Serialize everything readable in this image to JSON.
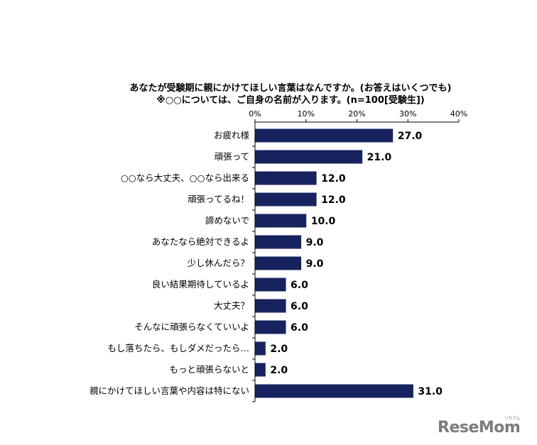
{
  "chart_data": {
    "type": "bar",
    "orientation": "horizontal",
    "title": [
      "あなたが受験期に親にかけてほしい言葉はなんですか。(お答えはいくつでも)",
      "※○○については、ご自身の名前が入ります。(n=100[受験生])"
    ],
    "categories": [
      "お疲れ様",
      "頑張って",
      "○○なら大丈夫、○○なら出来る",
      "頑張ってるね！",
      "諦めないで",
      "あなたなら絶対できるよ",
      "少し休んだら？",
      "良い結果期待しているよ",
      "大丈夫？",
      "そんなに頑張らなくていいよ",
      "もし落ちたら、もしダメだったら…",
      "もっと頑張らないと",
      "親にかけてほしい言葉や内容は特にない"
    ],
    "values": [
      27.0,
      21.0,
      12.0,
      12.0,
      10.0,
      9.0,
      9.0,
      6.0,
      6.0,
      6.0,
      2.0,
      2.0,
      31.0
    ],
    "value_labels": [
      "27.0",
      "21.0",
      "12.0",
      "12.0",
      "10.0",
      "9.0",
      "9.0",
      "6.0",
      "6.0",
      "6.0",
      "2.0",
      "2.0",
      "31.0"
    ],
    "xlim": [
      0,
      40
    ],
    "x_ticks": [
      "0%",
      "10%",
      "20%",
      "30%",
      "40%"
    ],
    "x_tick_values": [
      0,
      10,
      20,
      30,
      40
    ],
    "x_axis_position": "top",
    "grid": false,
    "legend": "none",
    "bar_color": "#17235E"
  },
  "watermark": {
    "text": "ReseMom",
    "ruby": "リセマム"
  }
}
